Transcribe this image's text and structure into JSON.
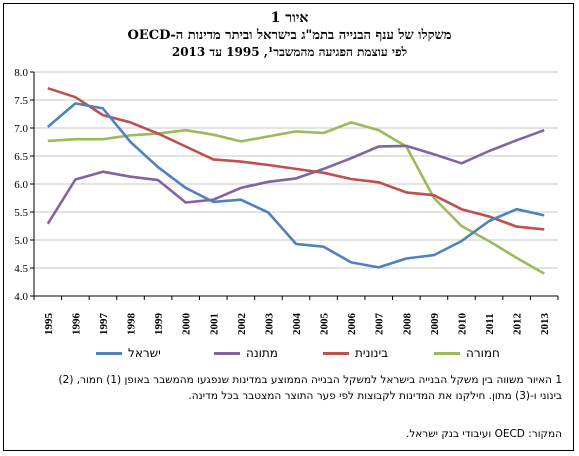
{
  "chart_data": {
    "type": "line",
    "title_line1": "איור 1",
    "title_line2": "משקלו של ענף הבנייה בתמ\"ג בישראל וביתר מדינות ה-OECD",
    "title_line3": "לפי עוצמת הפגיעה מהמשבר¹, 1995 עד 2013",
    "x": [
      "1995",
      "1996",
      "1997",
      "1998",
      "1999",
      "2000",
      "2001",
      "2002",
      "2003",
      "2004",
      "2005",
      "2006",
      "2007",
      "2008",
      "2009",
      "2010",
      "2011",
      "2012",
      "2013"
    ],
    "y_ticks": [
      "4.0",
      "4.5",
      "5.0",
      "5.5",
      "6.0",
      "6.5",
      "7.0",
      "7.5",
      "8.0"
    ],
    "ylim": [
      4.0,
      8.0
    ],
    "grid": true,
    "legend_position": "bottom",
    "series": [
      {
        "name": "ישראל",
        "color": "#4f81bd",
        "values": [
          7.02,
          7.44,
          7.35,
          6.75,
          6.3,
          5.93,
          5.68,
          5.72,
          5.49,
          4.93,
          4.88,
          4.6,
          4.51,
          4.67,
          4.73,
          4.98,
          5.34,
          5.55,
          5.44
        ]
      },
      {
        "name": "מתונה",
        "color": "#8064a2",
        "values": [
          5.29,
          6.08,
          6.22,
          6.13,
          6.07,
          5.67,
          5.72,
          5.93,
          6.04,
          6.1,
          6.27,
          6.46,
          6.67,
          6.68,
          6.53,
          6.37,
          6.59,
          6.78,
          6.96
        ]
      },
      {
        "name": "בינונית",
        "color": "#c0504d",
        "values": [
          7.71,
          7.55,
          7.23,
          7.1,
          6.9,
          6.67,
          6.44,
          6.4,
          6.34,
          6.27,
          6.2,
          6.09,
          6.03,
          5.85,
          5.8,
          5.55,
          5.42,
          5.24,
          5.19
        ]
      },
      {
        "name": "חמורה",
        "color": "#9bbb59",
        "values": [
          6.77,
          6.8,
          6.8,
          6.87,
          6.9,
          6.96,
          6.88,
          6.76,
          6.85,
          6.94,
          6.91,
          7.1,
          6.96,
          6.67,
          5.75,
          5.25,
          4.98,
          4.68,
          4.4
        ]
      }
    ]
  },
  "notes": {
    "footnote_line1": "1 האיור משווה בין משקל הבנייה בישראל למשקל הבנייה הממוצע במדינות שנפגעו מהמשבר באופן (1) חמור, (2)",
    "footnote_line2": "בינוני ו-(3) מתון. חילקנו את המדינות לקבוצות לפי פער התוצר המצטבר בכל מדינה.",
    "source": "המקור: OECD ועיבודי בנק ישראל."
  }
}
